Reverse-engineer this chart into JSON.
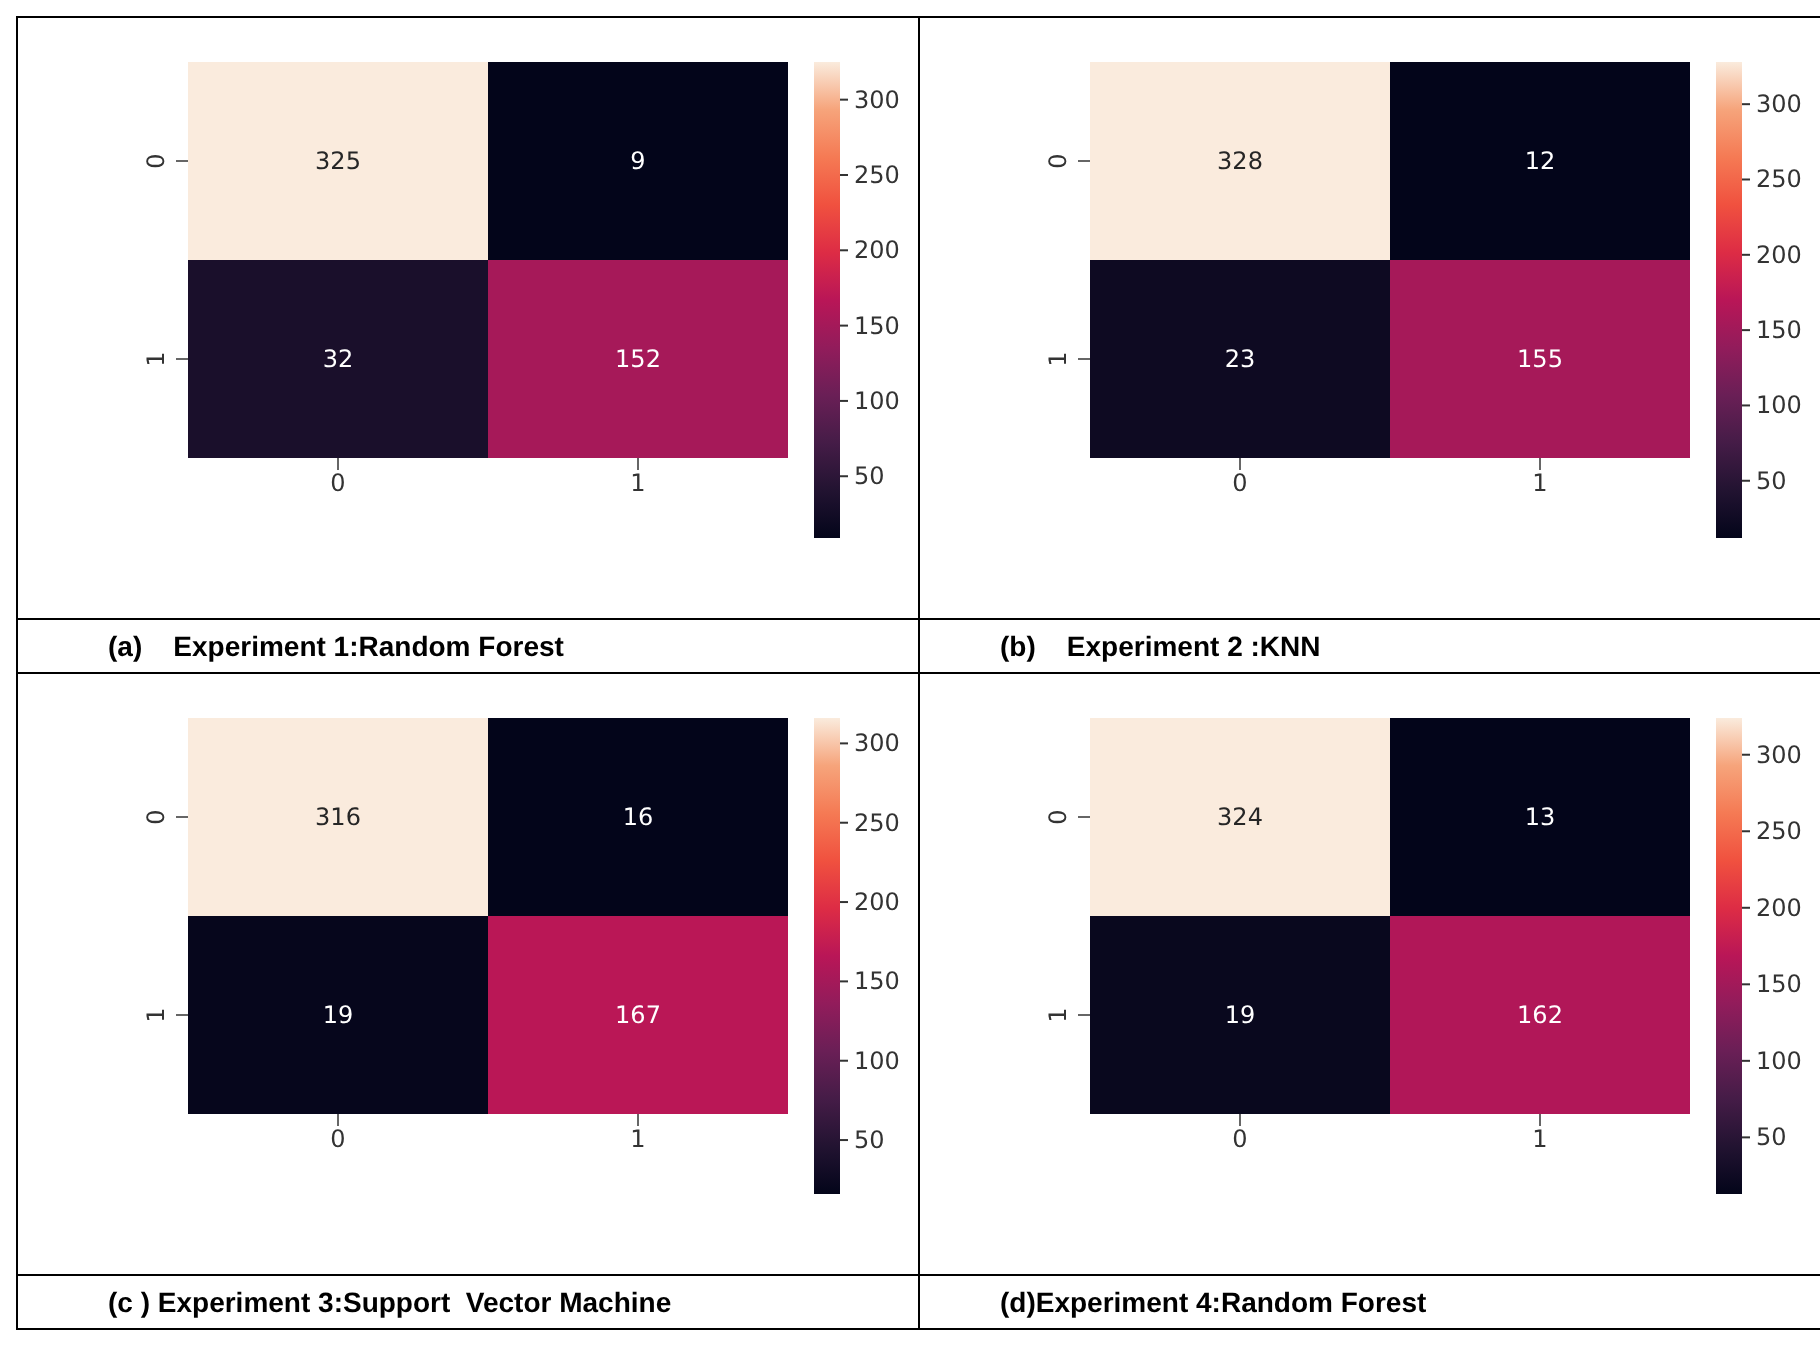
{
  "chart_data": [
    {
      "type": "heatmap",
      "title": "(a)    Experiment 1:Random Forest",
      "categories": [
        "0",
        "1"
      ],
      "y_categories": [
        "0",
        "1"
      ],
      "cells": [
        [
          325,
          9
        ],
        [
          32,
          152
        ]
      ],
      "clim": [
        9,
        325
      ],
      "cticks": [
        50,
        100,
        150,
        200,
        250,
        300
      ],
      "data_labels": true
    },
    {
      "type": "heatmap",
      "title": "(b)    Experiment 2 :KNN",
      "categories": [
        "0",
        "1"
      ],
      "y_categories": [
        "0",
        "1"
      ],
      "cells": [
        [
          328,
          12
        ],
        [
          23,
          155
        ]
      ],
      "clim": [
        12,
        328
      ],
      "cticks": [
        50,
        100,
        150,
        200,
        250,
        300
      ],
      "data_labels": true
    },
    {
      "type": "heatmap",
      "title": "(c ) Experiment 3:Support  Vector Machine",
      "categories": [
        "0",
        "1"
      ],
      "y_categories": [
        "0",
        "1"
      ],
      "cells": [
        [
          316,
          16
        ],
        [
          19,
          167
        ]
      ],
      "clim": [
        16,
        316
      ],
      "cticks": [
        50,
        100,
        150,
        200,
        250,
        300
      ],
      "data_labels": true
    },
    {
      "type": "heatmap",
      "title": "(d)Experiment 4:Random Forest",
      "categories": [
        "0",
        "1"
      ],
      "y_categories": [
        "0",
        "1"
      ],
      "cells": [
        [
          324,
          13
        ],
        [
          19,
          162
        ]
      ],
      "clim": [
        13,
        324
      ],
      "cticks": [
        50,
        100,
        150,
        200,
        250,
        300
      ],
      "data_labels": true
    }
  ]
}
